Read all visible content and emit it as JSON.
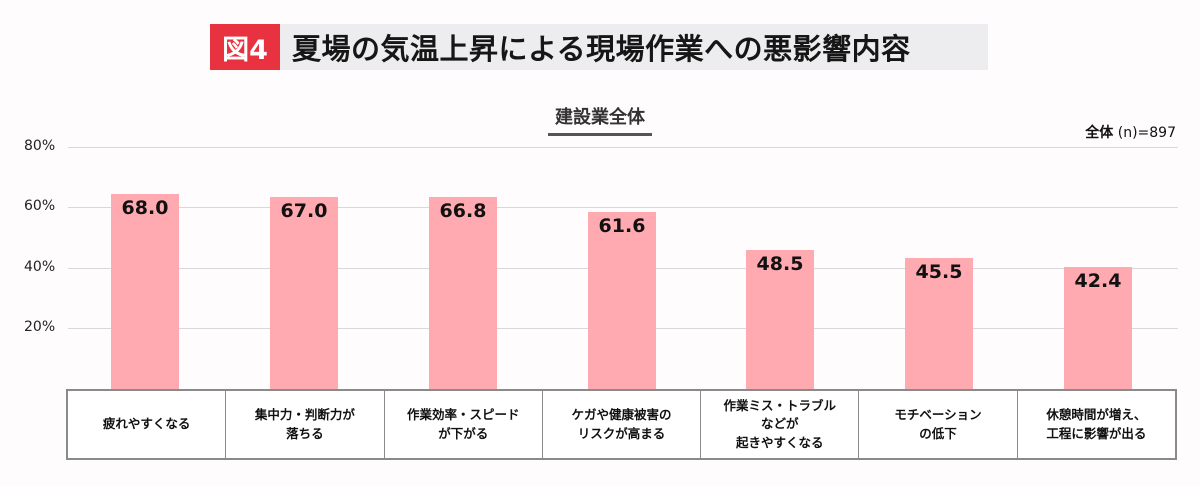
{
  "header": {
    "figure_label": "図4",
    "title": "夏場の気温上昇による現場作業への悪影響内容",
    "subtitle": "建設業全体",
    "sample_prefix": "全体",
    "sample_size": "(n)=897"
  },
  "colors": {
    "badge": "#e8323f",
    "title_band": "#ededef",
    "bar": "#ffa9b0",
    "grid": "#d7d7dc"
  },
  "axis": {
    "yticks": [
      "80%",
      "60%",
      "40%",
      "20%"
    ]
  },
  "chart_data": {
    "type": "bar",
    "title": "夏場の気温上昇による現場作業への悪影響内容",
    "subtitle": "建設業全体",
    "note": "全体 (n)=897",
    "xlabel": "",
    "ylabel": "",
    "ylim": [
      0,
      80
    ],
    "yticks": [
      20,
      40,
      60,
      80
    ],
    "grid": true,
    "legend": null,
    "categories": [
      "疲れやすくなる",
      "集中力・判断力が落ちる",
      "作業効率・スピードが下がる",
      "ケガや健康被害のリスクが高まる",
      "作業ミス・トラブルなどが起きやすくなる",
      "モチベーションの低下",
      "休憩時間が増え、工程に影響が出る"
    ],
    "values": [
      68.0,
      67.0,
      66.8,
      61.6,
      48.5,
      45.5,
      42.4
    ],
    "value_labels": [
      "68.0",
      "67.0",
      "66.8",
      "61.6",
      "48.5",
      "45.5",
      "42.4"
    ]
  },
  "categories_display": [
    "疲れやすくなる",
    "集中力・判断力が\n落ちる",
    "作業効率・スピード\nが下がる",
    "ケガや健康被害の\nリスクが高まる",
    "作業ミス・トラブル\nなどが\n起きやすくなる",
    "モチベーション\nの低下",
    "休憩時間が増え、\n工程に影響が出る"
  ]
}
